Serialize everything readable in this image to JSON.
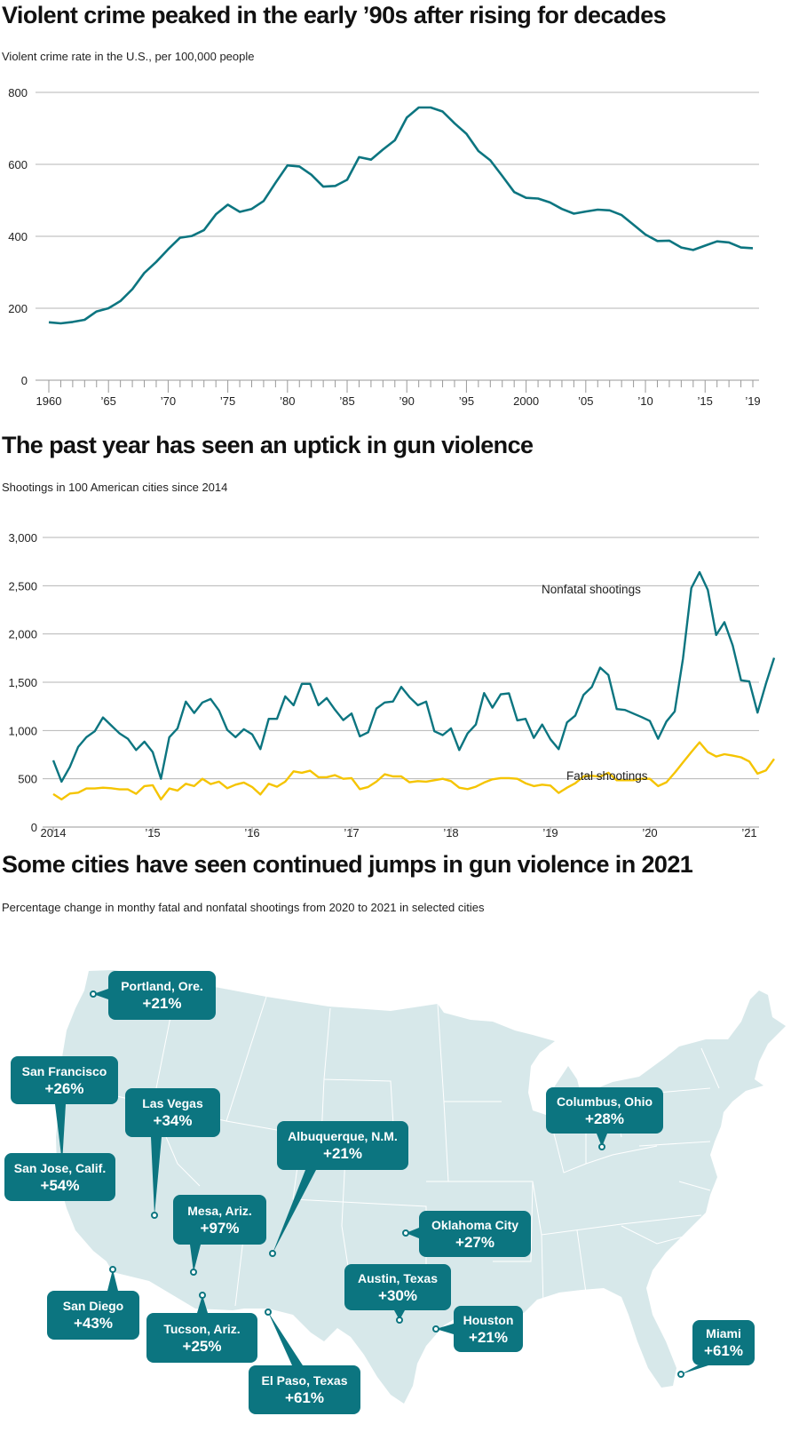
{
  "colors": {
    "teal": "#0c7580",
    "yellow": "#f5c400",
    "map_fill": "#d7e8ea",
    "grid": "#b5b5b5"
  },
  "chart_data": [
    {
      "type": "line",
      "title": "Violent crime peaked in the early ’90s after rising for decades",
      "subtitle": "Violent crime rate in the U.S., per 100,000 people",
      "xlabel": "",
      "ylabel": "",
      "xlim": [
        1960,
        2019
      ],
      "ylim": [
        0,
        800
      ],
      "grid": true,
      "y_ticks": [
        0,
        200,
        400,
        600,
        800
      ],
      "y_tick_labels": [
        "0",
        "200",
        "400",
        "600",
        "800"
      ],
      "x_ticks": [
        1960,
        1965,
        1970,
        1975,
        1980,
        1985,
        1990,
        1995,
        2000,
        2005,
        2010,
        2015,
        2019
      ],
      "x_tick_labels": [
        "1960",
        "’65",
        "’70",
        "’75",
        "’80",
        "’85",
        "’90",
        "’95",
        "2000",
        "’05",
        "’10",
        "’15",
        "’19"
      ],
      "series": [
        {
          "color": "#0c7580",
          "x": [
            1960,
            1961,
            1962,
            1963,
            1964,
            1965,
            1966,
            1967,
            1968,
            1969,
            1970,
            1971,
            1972,
            1973,
            1974,
            1975,
            1976,
            1977,
            1978,
            1979,
            1980,
            1981,
            1982,
            1983,
            1984,
            1985,
            1986,
            1987,
            1988,
            1989,
            1990,
            1991,
            1992,
            1993,
            1994,
            1995,
            1996,
            1997,
            1998,
            1999,
            2000,
            2001,
            2002,
            2003,
            2004,
            2005,
            2006,
            2007,
            2008,
            2009,
            2010,
            2011,
            2012,
            2013,
            2014,
            2015,
            2016,
            2017,
            2018,
            2019
          ],
          "values": [
            161,
            158,
            162,
            168,
            191,
            200,
            220,
            253,
            298,
            329,
            364,
            396,
            401,
            417,
            461,
            488,
            468,
            476,
            498,
            549,
            597,
            594,
            571,
            538,
            540,
            557,
            620,
            613,
            641,
            667,
            730,
            758,
            758,
            747,
            714,
            685,
            637,
            611,
            568,
            523,
            507,
            505,
            494,
            476,
            463,
            469,
            474,
            472,
            459,
            432,
            405,
            387,
            388,
            369,
            362,
            374,
            386,
            383,
            369,
            367
          ]
        }
      ]
    },
    {
      "type": "line",
      "title": "The past year has seen an uptick in gun violence",
      "subtitle": "Shootings in 100 American cities since 2014",
      "xlabel": "",
      "ylabel": "",
      "xlim": [
        "2014-01",
        "2021-04"
      ],
      "ylim": [
        0,
        3000
      ],
      "grid": true,
      "legend": "direct labels",
      "y_ticks": [
        0,
        500,
        1000,
        1500,
        2000,
        2500,
        3000
      ],
      "y_tick_labels": [
        "0",
        "500",
        "1,000",
        "1,500",
        "2,000",
        "2,500",
        "3,000"
      ],
      "x_ticks": [
        "2014-01",
        "2015-01",
        "2016-01",
        "2017-01",
        "2018-01",
        "2019-01",
        "2020-01",
        "2021-01"
      ],
      "x_tick_labels": [
        "2014",
        "’15",
        "’16",
        "’17",
        "’18",
        "’19",
        "’20",
        "’21"
      ],
      "x": [
        "2014-01",
        "2014-02",
        "2014-03",
        "2014-04",
        "2014-05",
        "2014-06",
        "2014-07",
        "2014-08",
        "2014-09",
        "2014-10",
        "2014-11",
        "2014-12",
        "2015-01",
        "2015-02",
        "2015-03",
        "2015-04",
        "2015-05",
        "2015-06",
        "2015-07",
        "2015-08",
        "2015-09",
        "2015-10",
        "2015-11",
        "2015-12",
        "2016-01",
        "2016-02",
        "2016-03",
        "2016-04",
        "2016-05",
        "2016-06",
        "2016-07",
        "2016-08",
        "2016-09",
        "2016-10",
        "2016-11",
        "2016-12",
        "2017-01",
        "2017-02",
        "2017-03",
        "2017-04",
        "2017-05",
        "2017-06",
        "2017-07",
        "2017-08",
        "2017-09",
        "2017-10",
        "2017-11",
        "2017-12",
        "2018-01",
        "2018-02",
        "2018-03",
        "2018-04",
        "2018-05",
        "2018-06",
        "2018-07",
        "2018-08",
        "2018-09",
        "2018-10",
        "2018-11",
        "2018-12",
        "2019-01",
        "2019-02",
        "2019-03",
        "2019-04",
        "2019-05",
        "2019-06",
        "2019-07",
        "2019-08",
        "2019-09",
        "2019-10",
        "2019-11",
        "2019-12",
        "2020-01",
        "2020-02",
        "2020-03",
        "2020-04",
        "2020-05",
        "2020-06",
        "2020-07",
        "2020-08",
        "2020-09",
        "2020-10",
        "2020-11",
        "2020-12",
        "2021-01",
        "2021-02",
        "2021-03",
        "2021-04"
      ],
      "series": [
        {
          "name": "Nonfatal shootings",
          "color": "#0c7580",
          "values": [
            691,
            470,
            623,
            829,
            930,
            992,
            1136,
            1053,
            970,
            915,
            798,
            884,
            777,
            500,
            930,
            1022,
            1299,
            1182,
            1290,
            1326,
            1207,
            1007,
            930,
            1013,
            961,
            807,
            1121,
            1121,
            1354,
            1262,
            1483,
            1483,
            1262,
            1336,
            1216,
            1108,
            1176,
            940,
            982,
            1228,
            1290,
            1300,
            1452,
            1345,
            1262,
            1299,
            992,
            952,
            1022,
            798,
            970,
            1062,
            1388,
            1237,
            1375,
            1385,
            1105,
            1121,
            924,
            1062,
            909,
            807,
            1084,
            1154,
            1369,
            1452,
            1652,
            1575,
            1222,
            1213,
            1176,
            1139,
            1099,
            915,
            1093,
            1197,
            1744,
            2475,
            2640,
            2456,
            1990,
            2122,
            1882,
            1520,
            1508,
            1185,
            1483,
            1753
          ]
        },
        {
          "name": "Fatal shootings",
          "color": "#f5c400",
          "values": [
            341,
            286,
            347,
            356,
            399,
            399,
            408,
            402,
            390,
            390,
            344,
            424,
            433,
            286,
            399,
            378,
            448,
            424,
            500,
            445,
            470,
            402,
            439,
            461,
            415,
            338,
            448,
            418,
            470,
            577,
            562,
            583,
            516,
            516,
            537,
            500,
            507,
            393,
            415,
            470,
            547,
            525,
            525,
            464,
            476,
            470,
            485,
            500,
            476,
            408,
            393,
            418,
            461,
            494,
            507,
            507,
            500,
            454,
            424,
            439,
            430,
            353,
            408,
            454,
            525,
            531,
            522,
            562,
            485,
            485,
            485,
            500,
            500,
            424,
            464,
            562,
            669,
            777,
            878,
            777,
            731,
            755,
            740,
            722,
            679,
            553,
            586,
            706
          ]
        }
      ]
    }
  ],
  "map": {
    "title": "Some cities have seen continued jumps in gun violence in 2021",
    "subtitle": "Percentage change in monthy fatal and nonfatal shootings from 2020 to 2021 in selected cities",
    "callouts": [
      {
        "city": "Portland, Ore.",
        "change": "+21%"
      },
      {
        "city": "San Francisco",
        "change": "+26%"
      },
      {
        "city": "San Jose, Calif.",
        "change": "+54%"
      },
      {
        "city": "Las Vegas",
        "change": "+34%"
      },
      {
        "city": "Albuquerque, N.M.",
        "change": "+21%"
      },
      {
        "city": "Mesa, Ariz.",
        "change": "+97%"
      },
      {
        "city": "Oklahoma City",
        "change": "+27%"
      },
      {
        "city": "San Diego",
        "change": "+43%"
      },
      {
        "city": "Tucson, Ariz.",
        "change": "+25%"
      },
      {
        "city": "Austin, Texas",
        "change": "+30%"
      },
      {
        "city": "Houston",
        "change": "+21%"
      },
      {
        "city": "El Paso, Texas",
        "change": "+61%"
      },
      {
        "city": "Columbus, Ohio",
        "change": "+28%"
      },
      {
        "city": "Miami",
        "change": "+61%"
      }
    ]
  }
}
